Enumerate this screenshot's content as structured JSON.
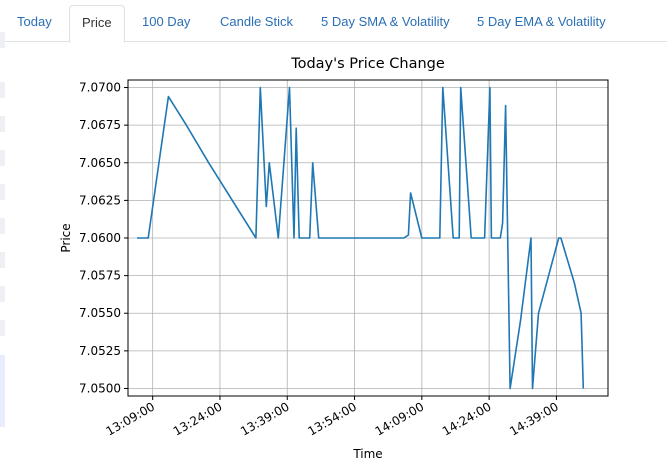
{
  "tabs": [
    {
      "label": "Today",
      "active": false
    },
    {
      "label": "Price",
      "active": true
    },
    {
      "label": "100 Day",
      "active": false
    },
    {
      "label": "Candle Stick",
      "active": false
    },
    {
      "label": "5 Day SMA & Volatility",
      "active": false
    },
    {
      "label": "5 Day EMA & Volatility",
      "active": false
    }
  ],
  "chart_data": {
    "type": "line",
    "title": "Today's Price Change",
    "xlabel": "Time",
    "ylabel": "Price",
    "xlim": [
      "13:03:30",
      "14:50:30"
    ],
    "ylim": [
      7.0495,
      7.0705
    ],
    "grid": true,
    "line_color": "#1f77b4",
    "x_ticks": [
      "13:09:00",
      "13:24:00",
      "13:39:00",
      "13:54:00",
      "14:09:00",
      "14:24:00",
      "14:39:00"
    ],
    "y_ticks": [
      "7.0500",
      "7.0525",
      "7.0550",
      "7.0575",
      "7.0600",
      "7.0625",
      "7.0650",
      "7.0675",
      "7.0700"
    ],
    "series": [
      {
        "x": [
          "13:05:30",
          "13:08:00",
          "13:12:30",
          "13:16:30",
          "13:21:30",
          "13:32:00",
          "13:33:00",
          "13:34:20",
          "13:35:00",
          "13:37:00",
          "13:39:30",
          "13:40:30",
          "13:41:00",
          "13:41:40",
          "13:44:00",
          "13:44:40",
          "13:46:00",
          "14:05:00",
          "14:06:00",
          "14:06:30",
          "14:09:00",
          "14:13:00",
          "14:13:40",
          "14:16:00",
          "14:17:20",
          "14:17:40",
          "14:20:00",
          "14:23:00",
          "14:24:10",
          "14:24:30",
          "14:26:30",
          "14:27:00",
          "14:27:40",
          "14:28:40",
          "14:31:00",
          "14:33:20",
          "14:33:40",
          "14:35:00",
          "14:39:30",
          "14:40:00",
          "14:43:00",
          "14:44:30",
          "14:45:00"
        ],
        "y": [
          7.06,
          7.06,
          7.0694,
          7.0675,
          7.065,
          7.06,
          7.07,
          7.0621,
          7.065,
          7.06,
          7.07,
          7.06,
          7.0673,
          7.06,
          7.06,
          7.065,
          7.06,
          7.06,
          7.0602,
          7.063,
          7.06,
          7.06,
          7.07,
          7.06,
          7.06,
          7.07,
          7.06,
          7.06,
          7.07,
          7.06,
          7.06,
          7.061,
          7.0688,
          7.05,
          7.0545,
          7.06,
          7.05,
          7.055,
          7.06,
          7.06,
          7.057,
          7.055,
          7.05
        ]
      }
    ]
  }
}
